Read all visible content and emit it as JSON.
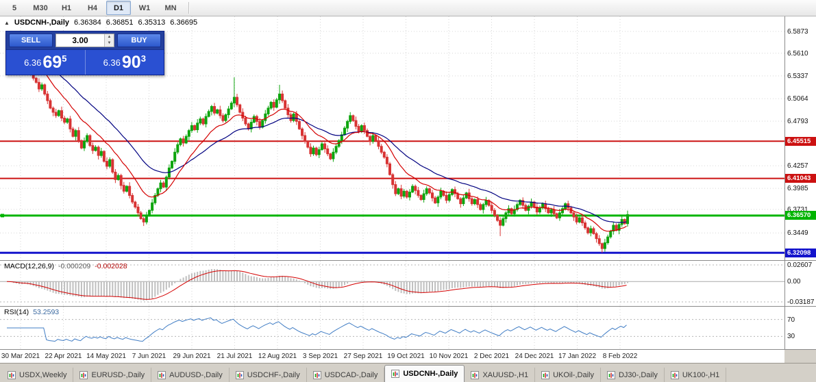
{
  "toolbar": {
    "timeframes": [
      "5",
      "M30",
      "H1",
      "H4",
      "D1",
      "W1",
      "MN"
    ],
    "active_timeframe": "D1"
  },
  "quote_header": {
    "collapse_icon": "▲",
    "symbol": "USDCNH-,Daily",
    "open": "6.36384",
    "high": "6.36851",
    "low": "6.35313",
    "close": "6.36695"
  },
  "trade_panel": {
    "sell_label": "SELL",
    "buy_label": "BUY",
    "volume": "3.00",
    "spin_up_icon": "▲",
    "spin_down_icon": "▼",
    "bid": {
      "prefix": "6.36",
      "big": "69",
      "sup": "5"
    },
    "ask": {
      "prefix": "6.36",
      "big": "90",
      "sup": "3"
    }
  },
  "price_axis": {
    "top_price": 6.6053,
    "bottom_price": 6.3121,
    "ticks": [
      "6.5873",
      "6.5610",
      "6.5337",
      "6.5064",
      "6.4793",
      "6.4257",
      "6.3985",
      "6.3731",
      "6.3449"
    ]
  },
  "hlines": [
    {
      "price": 6.45515,
      "label": "6.45515",
      "color": "#cc1111",
      "thickness": 2,
      "anchor": false
    },
    {
      "price": 6.41043,
      "label": "6.41043",
      "color": "#cc1111",
      "thickness": 2,
      "anchor": false
    },
    {
      "price": 6.3657,
      "label": "6.36570",
      "color": "#00b400",
      "thickness": 3,
      "anchor": true
    },
    {
      "price": 6.32098,
      "label": "6.32098",
      "color": "#1414cc",
      "thickness": 3,
      "anchor": false
    }
  ],
  "macd_panel": {
    "header": "MACD(12,26,9)",
    "value_main": "-0.000209",
    "value_signal": "-0.002028",
    "max": 0.02607,
    "min": -0.03187,
    "axis_labels": [
      "0.02607",
      "0.00",
      "-0.03187"
    ]
  },
  "rsi_panel": {
    "header": "RSI(14)",
    "value": "53.2593",
    "levels": [
      70,
      30
    ],
    "axis_labels": [
      "70",
      "30"
    ]
  },
  "date_axis": {
    "labels": [
      "30 Mar 2021",
      "22 Apr 2021",
      "14 May 2021",
      "7 Jun 2021",
      "29 Jun 2021",
      "21 Jul 2021",
      "12 Aug 2021",
      "3 Sep 2021",
      "27 Sep 2021",
      "19 Oct 2021",
      "10 Nov 2021",
      "2 Dec 2021",
      "24 Dec 2021",
      "17 Jan 2022",
      "8 Feb 2022"
    ]
  },
  "tabs": {
    "items": [
      {
        "label": "USDX,Weekly",
        "active": false
      },
      {
        "label": "EURUSD-,Daily",
        "active": false
      },
      {
        "label": "AUDUSD-,Daily",
        "active": false
      },
      {
        "label": "USDCHF-,Daily",
        "active": false
      },
      {
        "label": "USDCAD-,Daily",
        "active": false
      },
      {
        "label": "USDCNH-,Daily",
        "active": true
      },
      {
        "label": "XAUUSD-,H1",
        "active": false
      },
      {
        "label": "UKOil-,Daily",
        "active": false
      },
      {
        "label": "DJ30-,Daily",
        "active": false
      },
      {
        "label": "UK100-,H1",
        "active": false
      }
    ]
  },
  "colors": {
    "bull": "#0ea50e",
    "bear": "#d83434",
    "ma_fast": "#d40000",
    "ma_slow": "#000080",
    "macd_hist": "#bfbfbf",
    "macd_signal": "#d40000",
    "rsi_line": "#3f7cc4",
    "grid": "#d6d6d6",
    "level": "#b4b4b4"
  },
  "chart_data": {
    "type": "candlestick",
    "symbol": "USDCNH",
    "timeframe": "Daily",
    "x_range": [
      "30 Mar 2021",
      "8 Feb 2022"
    ],
    "y_range": [
      6.3121,
      6.6053
    ],
    "first_open": 6.574,
    "closes": [
      6.569,
      6.56,
      6.5495,
      6.553,
      6.545,
      6.556,
      6.562,
      6.548,
      6.539,
      6.531,
      6.526,
      6.518,
      6.523,
      6.512,
      6.504,
      6.495,
      6.49,
      6.486,
      6.492,
      6.483,
      6.478,
      6.482,
      6.47,
      6.461,
      6.468,
      6.456,
      6.447,
      6.455,
      6.462,
      6.45,
      6.444,
      6.448,
      6.438,
      6.443,
      6.431,
      6.425,
      6.433,
      6.418,
      6.409,
      6.414,
      6.402,
      6.395,
      6.401,
      6.39,
      6.382,
      6.376,
      6.369,
      6.362,
      6.358,
      6.366,
      6.372,
      6.381,
      6.39,
      6.398,
      6.405,
      6.4,
      6.412,
      6.423,
      6.431,
      6.442,
      6.451,
      6.458,
      6.453,
      6.461,
      6.468,
      6.474,
      6.469,
      6.477,
      6.482,
      6.476,
      6.485,
      6.491,
      6.497,
      6.489,
      6.493,
      6.486,
      6.48,
      6.487,
      6.494,
      6.501,
      6.508,
      6.499,
      6.49,
      6.483,
      6.476,
      6.47,
      6.478,
      6.485,
      6.479,
      6.472,
      6.48,
      6.488,
      6.495,
      6.502,
      6.496,
      6.505,
      6.512,
      6.504,
      6.495,
      6.487,
      6.48,
      6.488,
      6.479,
      6.47,
      6.462,
      6.455,
      6.448,
      6.44,
      6.447,
      6.439,
      6.445,
      6.452,
      6.446,
      6.44,
      6.434,
      6.442,
      6.449,
      6.456,
      6.463,
      6.471,
      6.479,
      6.486,
      6.48,
      6.473,
      6.467,
      6.474,
      6.468,
      6.461,
      6.455,
      6.462,
      6.456,
      6.449,
      6.442,
      6.436,
      6.428,
      6.415,
      6.403,
      6.392,
      6.398,
      6.389,
      6.395,
      6.388,
      6.394,
      6.401,
      6.396,
      6.39,
      6.385,
      6.392,
      6.398,
      6.393,
      6.387,
      6.381,
      6.388,
      6.395,
      6.39,
      6.384,
      6.391,
      6.397,
      6.392,
      6.386,
      6.38,
      6.387,
      6.393,
      6.386,
      6.38,
      6.385,
      6.379,
      6.373,
      6.379,
      6.384,
      6.378,
      6.372,
      6.366,
      6.36,
      6.354,
      6.362,
      6.369,
      6.374,
      6.368,
      6.373,
      6.379,
      6.384,
      6.378,
      6.372,
      6.377,
      6.382,
      6.376,
      6.37,
      6.375,
      6.38,
      6.374,
      6.369,
      6.373,
      6.368,
      6.363,
      6.369,
      6.374,
      6.38,
      6.375,
      6.369,
      6.364,
      6.358,
      6.363,
      6.357,
      6.351,
      6.345,
      6.35,
      6.344,
      6.338,
      6.332,
      6.326,
      6.333,
      6.34,
      6.347,
      6.354,
      6.348,
      6.355,
      6.361,
      6.356,
      6.36695
    ],
    "wick_cycle": [
      0.002,
      0.0042,
      0.0013,
      0.0048,
      0.0028,
      0.0016,
      0.0036,
      0.0024
    ],
    "spikes": {
      "0": {
        "h": 6.5755
      },
      "48": {
        "l": 6.3552
      },
      "80": {
        "h": 6.532
      },
      "96": {
        "h": 6.523
      },
      "174": {
        "l": 6.341
      },
      "210": {
        "l": 6.321
      }
    },
    "overlays": [
      {
        "name": "ma-fast",
        "type": "ema",
        "period": 15
      },
      {
        "name": "ma-slow",
        "type": "ema",
        "period": 34
      }
    ],
    "indicators": [
      {
        "name": "MACD",
        "fast": 12,
        "slow": 26,
        "signal": 9
      },
      {
        "name": "RSI",
        "period": 14
      }
    ]
  }
}
